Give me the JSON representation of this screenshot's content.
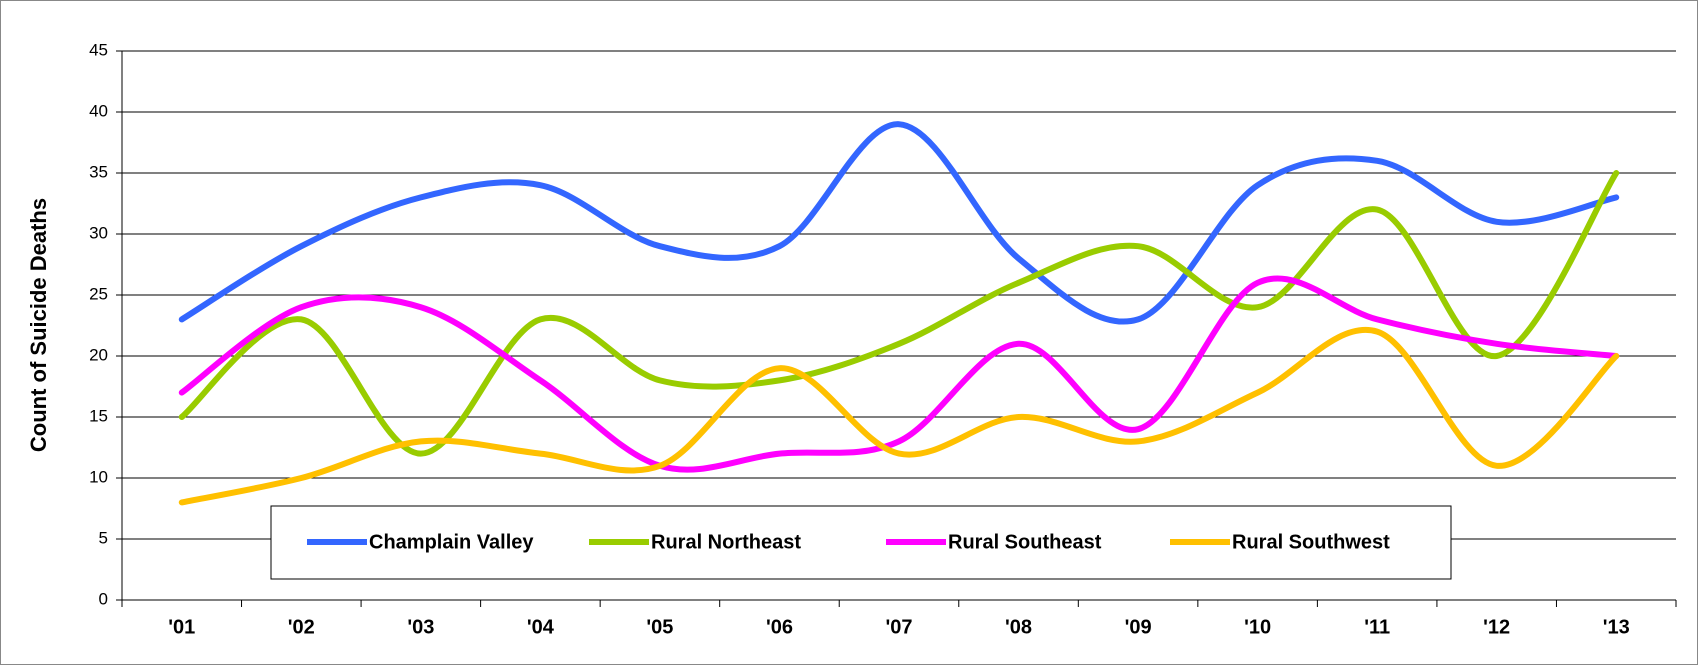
{
  "chart_data": {
    "type": "line",
    "y_label": "Count of Suicide Deaths",
    "categories": [
      "'01",
      "'02",
      "'03",
      "'04",
      "'05",
      "'06",
      "'07",
      "'08",
      "'09",
      "'10",
      "'11",
      "'12",
      "'13"
    ],
    "series": [
      {
        "name": "Champlain Valley",
        "color": "#3366ff",
        "values": [
          23,
          29,
          33,
          34,
          29,
          29,
          39,
          28,
          23,
          34,
          36,
          31,
          33
        ]
      },
      {
        "name": "Rural Northeast",
        "color": "#99cc00",
        "values": [
          15,
          23,
          12,
          23,
          18,
          18,
          21,
          26,
          29,
          24,
          32,
          20,
          35
        ]
      },
      {
        "name": "Rural Southeast",
        "color": "#ff00ff",
        "values": [
          17,
          24,
          24,
          18,
          11,
          12,
          13,
          21,
          14,
          26,
          23,
          21,
          20
        ]
      },
      {
        "name": "Rural Southwest",
        "color": "#ffc000",
        "values": [
          8,
          10,
          13,
          12,
          11,
          19,
          12,
          15,
          13,
          17,
          22,
          11,
          20
        ]
      }
    ],
    "ylim": [
      0,
      45
    ],
    "yticks": [
      0,
      5,
      10,
      15,
      20,
      25,
      30,
      35,
      40,
      45
    ],
    "grid": true,
    "smooth": true
  }
}
